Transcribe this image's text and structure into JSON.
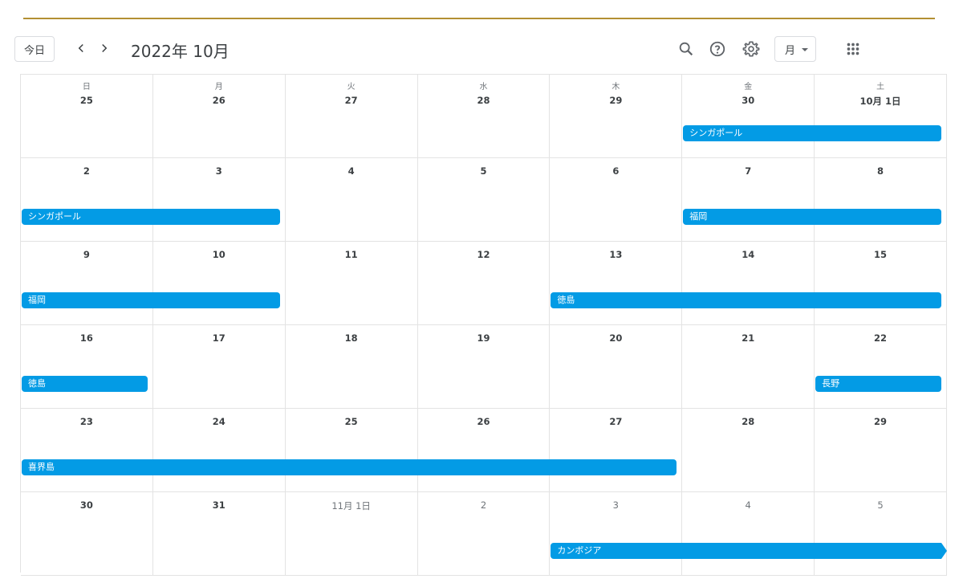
{
  "toolbar": {
    "today_label": "今日",
    "title": "2022年 10月",
    "view_label": "月"
  },
  "weekdays": [
    "日",
    "月",
    "火",
    "水",
    "木",
    "金",
    "土"
  ],
  "weeks": [
    [
      "25",
      "26",
      "27",
      "28",
      "29",
      "30",
      "10月 1日"
    ],
    [
      "2",
      "3",
      "4",
      "5",
      "6",
      "7",
      "8"
    ],
    [
      "9",
      "10",
      "11",
      "12",
      "13",
      "14",
      "15"
    ],
    [
      "16",
      "17",
      "18",
      "19",
      "20",
      "21",
      "22"
    ],
    [
      "23",
      "24",
      "25",
      "26",
      "27",
      "28",
      "29"
    ],
    [
      "30",
      "31",
      "11月 1日",
      "2",
      "3",
      "4",
      "5"
    ]
  ],
  "dim_dates": [
    [
      5,
      2
    ],
    [
      5,
      3
    ],
    [
      5,
      4
    ],
    [
      5,
      5
    ],
    [
      5,
      6
    ]
  ],
  "events": [
    {
      "title": "シンガポール",
      "week": 0,
      "start": 5,
      "span": 2,
      "continues": false
    },
    {
      "title": "シンガポール",
      "week": 1,
      "start": 0,
      "span": 2,
      "continues": false
    },
    {
      "title": "福岡",
      "week": 1,
      "start": 5,
      "span": 2,
      "continues": false
    },
    {
      "title": "福岡",
      "week": 2,
      "start": 0,
      "span": 2,
      "continues": false
    },
    {
      "title": "徳島",
      "week": 2,
      "start": 4,
      "span": 3,
      "continues": false
    },
    {
      "title": "徳島",
      "week": 3,
      "start": 0,
      "span": 1,
      "continues": false
    },
    {
      "title": "長野",
      "week": 3,
      "start": 6,
      "span": 1,
      "continues": false
    },
    {
      "title": "喜界島",
      "week": 4,
      "start": 0,
      "span": 5,
      "continues": false
    },
    {
      "title": "カンボジア",
      "week": 5,
      "start": 4,
      "span": 3,
      "continues": true
    }
  ],
  "colors": {
    "event": "#039be5",
    "accent_line": "#b38f33"
  }
}
